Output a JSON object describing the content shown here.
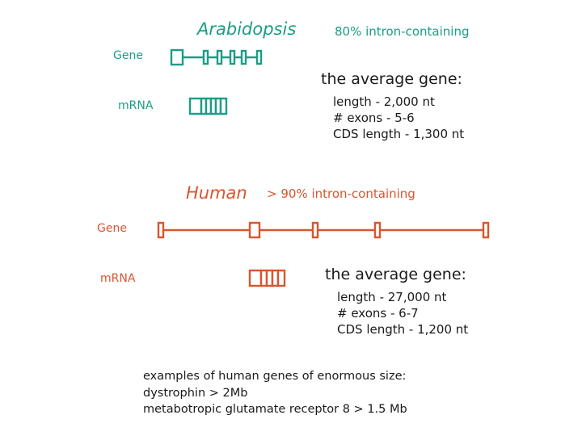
{
  "arabidopsis": {
    "title": "Arabidopsis",
    "intron_note": "80% intron-containing",
    "gene_label": "Gene",
    "mrna_label": "m​RNA",
    "average_heading": "the average gene:",
    "stats": [
      "length - 2,000 nt",
      "# exons  -  5-6",
      "CDS length - 1,300 nt"
    ]
  },
  "human": {
    "title": "Human",
    "intron_note": "> 90% intron-containing",
    "gene_label": "Gene",
    "mrna_label": "m​RNA",
    "average_heading": "the average gene:",
    "stats": [
      "length - 27,000 nt",
      "# exons  -  6-7",
      "CDS length - 1,200 nt"
    ]
  },
  "examples": [
    "examples of human genes of enormous size:",
    "dystrophin  > 2Mb",
    "metabotropic glutamate receptor 8 > 1.5 Mb"
  ],
  "colors": {
    "arabidopsis": "#1a9e86",
    "human": "#d8562e"
  }
}
